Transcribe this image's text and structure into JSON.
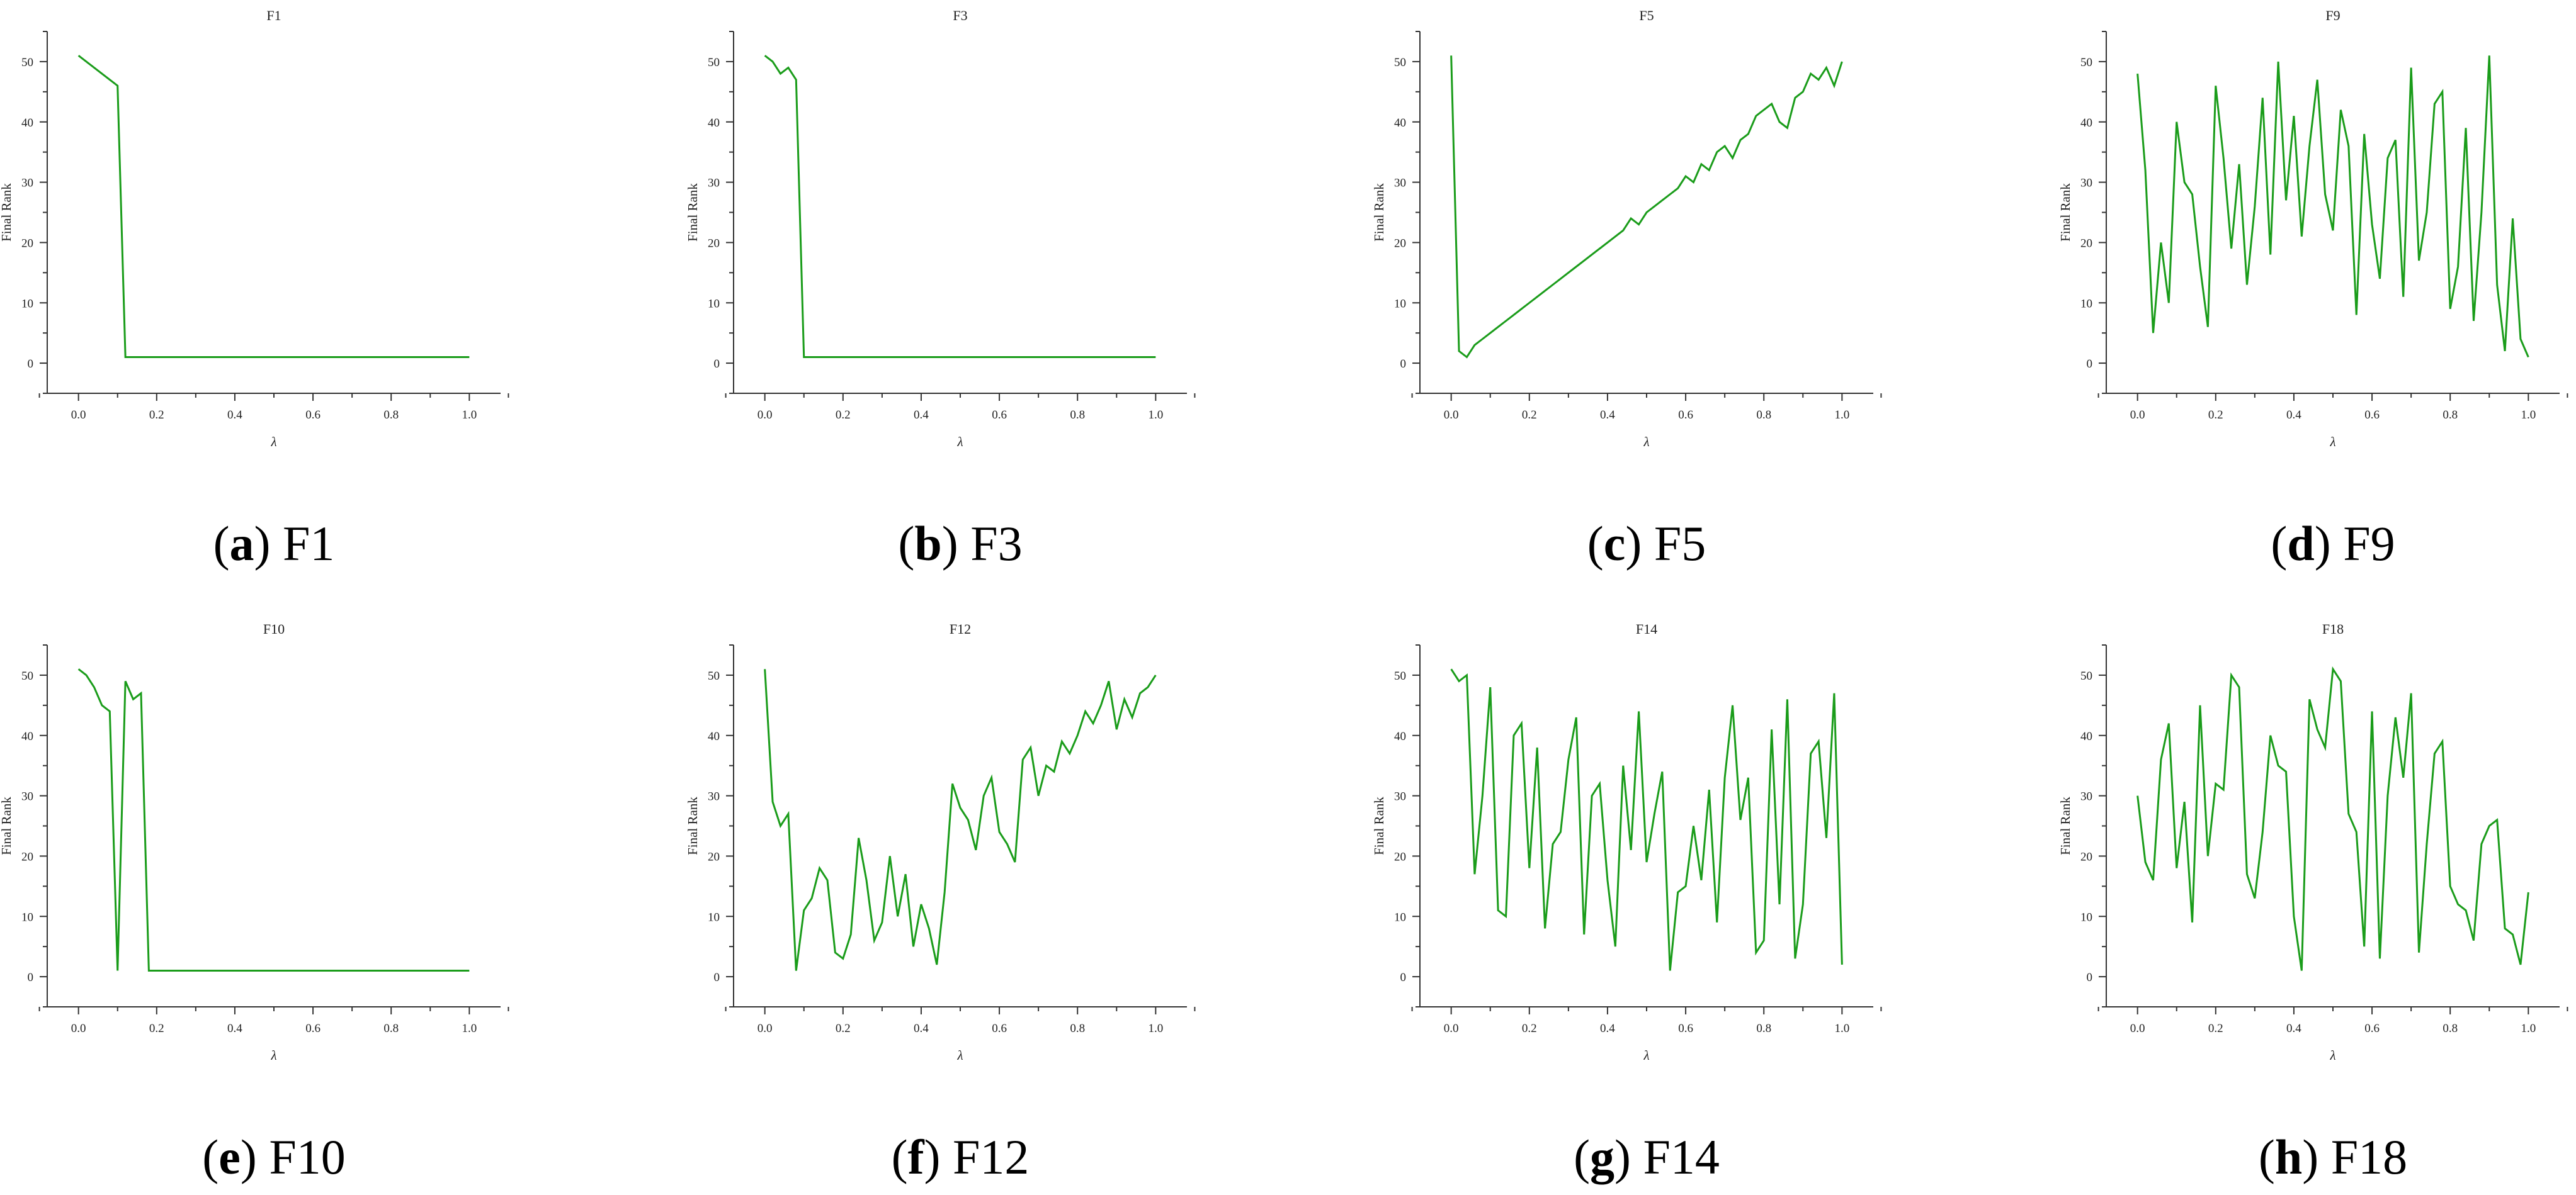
{
  "figure": {
    "line_color": "#1a9c1a",
    "axis_color": "#333333",
    "ylabel": "Final Rank",
    "xlabel": "λ",
    "xlim": [
      -0.08,
      1.08
    ],
    "ylim": [
      -5,
      55
    ],
    "x_ticks": [
      "0.0",
      "0.2",
      "0.4",
      "0.6",
      "0.8",
      "1.0"
    ],
    "y_ticks": [
      "0",
      "10",
      "20",
      "30",
      "40",
      "50"
    ]
  },
  "chart_data": [
    {
      "type": "line",
      "title": "F1",
      "caption_letter": "a",
      "caption_name": "F1",
      "xlabel": "λ",
      "ylabel": "Final Rank",
      "xlim": [
        -0.08,
        1.08
      ],
      "ylim": [
        -5,
        55
      ],
      "series": [
        {
          "x": [
            0.0,
            0.1,
            0.12,
            1.0
          ],
          "values": [
            51,
            46,
            1,
            1
          ]
        }
      ]
    },
    {
      "type": "line",
      "title": "F3",
      "caption_letter": "b",
      "caption_name": "F3",
      "xlabel": "λ",
      "ylabel": "Final Rank",
      "xlim": [
        -0.08,
        1.08
      ],
      "ylim": [
        -5,
        55
      ],
      "series": [
        {
          "x": [
            0.0,
            0.02,
            0.04,
            0.06,
            0.08,
            0.1,
            1.0
          ],
          "values": [
            51,
            50,
            48,
            49,
            47,
            1,
            1
          ]
        }
      ]
    },
    {
      "type": "line",
      "title": "F5",
      "caption_letter": "c",
      "caption_name": "F5",
      "xlabel": "λ",
      "ylabel": "Final Rank",
      "xlim": [
        -0.08,
        1.08
      ],
      "ylim": [
        -5,
        55
      ],
      "series": [
        {
          "x": [
            0.0,
            0.02,
            0.04,
            0.06,
            0.08,
            0.1,
            0.12,
            0.14,
            0.16,
            0.18,
            0.2,
            0.22,
            0.24,
            0.26,
            0.28,
            0.3,
            0.32,
            0.34,
            0.36,
            0.38,
            0.4,
            0.42,
            0.44,
            0.46,
            0.48,
            0.5,
            0.52,
            0.54,
            0.56,
            0.58,
            0.6,
            0.62,
            0.64,
            0.66,
            0.68,
            0.7,
            0.72,
            0.74,
            0.76,
            0.78,
            0.8,
            0.82,
            0.84,
            0.86,
            0.88,
            0.9,
            0.92,
            0.94,
            0.96,
            0.98,
            1.0
          ],
          "values": [
            51,
            2,
            1,
            3,
            4,
            5,
            6,
            7,
            8,
            9,
            10,
            11,
            12,
            13,
            14,
            15,
            16,
            17,
            18,
            19,
            20,
            21,
            22,
            24,
            23,
            25,
            26,
            27,
            28,
            29,
            31,
            30,
            33,
            32,
            35,
            36,
            34,
            37,
            38,
            41,
            42,
            43,
            40,
            39,
            44,
            45,
            48,
            47,
            49,
            46,
            50
          ]
        }
      ]
    },
    {
      "type": "line",
      "title": "F9",
      "caption_letter": "d",
      "caption_name": "F9",
      "xlabel": "λ",
      "ylabel": "Final Rank",
      "xlim": [
        -0.08,
        1.08
      ],
      "ylim": [
        -5,
        55
      ],
      "series": [
        {
          "x": [
            0.0,
            0.02,
            0.04,
            0.06,
            0.08,
            0.1,
            0.12,
            0.14,
            0.16,
            0.18,
            0.2,
            0.22,
            0.24,
            0.26,
            0.28,
            0.3,
            0.32,
            0.34,
            0.36,
            0.38,
            0.4,
            0.42,
            0.44,
            0.46,
            0.48,
            0.5,
            0.52,
            0.54,
            0.56,
            0.58,
            0.6,
            0.62,
            0.64,
            0.66,
            0.68,
            0.7,
            0.72,
            0.74,
            0.76,
            0.78,
            0.8,
            0.82,
            0.84,
            0.86,
            0.88,
            0.9,
            0.92,
            0.94,
            0.96,
            0.98,
            1.0
          ],
          "values": [
            48,
            32,
            5,
            20,
            10,
            40,
            30,
            28,
            16,
            6,
            46,
            34,
            19,
            33,
            13,
            26,
            44,
            18,
            50,
            27,
            41,
            21,
            36,
            47,
            28,
            22,
            42,
            36,
            8,
            38,
            23,
            14,
            34,
            37,
            11,
            49,
            17,
            25,
            43,
            45,
            9,
            16,
            39,
            7,
            25,
            51,
            13,
            2,
            24,
            4,
            1
          ]
        }
      ]
    },
    {
      "type": "line",
      "title": "F10",
      "caption_letter": "e",
      "caption_name": "F10",
      "xlabel": "λ",
      "ylabel": "Final Rank",
      "xlim": [
        -0.08,
        1.08
      ],
      "ylim": [
        -5,
        55
      ],
      "series": [
        {
          "x": [
            0.0,
            0.02,
            0.04,
            0.06,
            0.08,
            0.1,
            0.12,
            0.14,
            0.16,
            0.18,
            1.0
          ],
          "values": [
            51,
            50,
            48,
            45,
            44,
            1,
            49,
            46,
            47,
            1,
            1
          ]
        }
      ]
    },
    {
      "type": "line",
      "title": "F12",
      "caption_letter": "f",
      "caption_name": "F12",
      "xlabel": "λ",
      "ylabel": "Final Rank",
      "xlim": [
        -0.08,
        1.08
      ],
      "ylim": [
        -5,
        55
      ],
      "series": [
        {
          "x": [
            0.0,
            0.02,
            0.04,
            0.06,
            0.08,
            0.1,
            0.12,
            0.14,
            0.16,
            0.18,
            0.2,
            0.22,
            0.24,
            0.26,
            0.28,
            0.3,
            0.32,
            0.34,
            0.36,
            0.38,
            0.4,
            0.42,
            0.44,
            0.46,
            0.48,
            0.5,
            0.52,
            0.54,
            0.56,
            0.58,
            0.6,
            0.62,
            0.64,
            0.66,
            0.68,
            0.7,
            0.72,
            0.74,
            0.76,
            0.78,
            0.8,
            0.82,
            0.84,
            0.86,
            0.88,
            0.9,
            0.92,
            0.94,
            0.96,
            0.98,
            1.0
          ],
          "values": [
            51,
            29,
            25,
            27,
            1,
            11,
            13,
            18,
            16,
            4,
            3,
            7,
            23,
            16,
            6,
            9,
            20,
            10,
            17,
            5,
            12,
            8,
            2,
            14,
            32,
            28,
            26,
            21,
            30,
            33,
            24,
            22,
            19,
            36,
            38,
            30,
            35,
            34,
            39,
            37,
            40,
            44,
            42,
            45,
            49,
            41,
            46,
            43,
            47,
            48,
            50
          ]
        }
      ]
    },
    {
      "type": "line",
      "title": "F14",
      "caption_letter": "g",
      "caption_name": "F14",
      "xlabel": "λ",
      "ylabel": "Final Rank",
      "xlim": [
        -0.08,
        1.08
      ],
      "ylim": [
        -5,
        55
      ],
      "series": [
        {
          "x": [
            0.0,
            0.02,
            0.04,
            0.06,
            0.08,
            0.1,
            0.12,
            0.14,
            0.16,
            0.18,
            0.2,
            0.22,
            0.24,
            0.26,
            0.28,
            0.3,
            0.32,
            0.34,
            0.36,
            0.38,
            0.4,
            0.42,
            0.44,
            0.46,
            0.48,
            0.5,
            0.52,
            0.54,
            0.56,
            0.58,
            0.6,
            0.62,
            0.64,
            0.66,
            0.68,
            0.7,
            0.72,
            0.74,
            0.76,
            0.78,
            0.8,
            0.82,
            0.84,
            0.86,
            0.88,
            0.9,
            0.92,
            0.94,
            0.96,
            0.98,
            1.0
          ],
          "values": [
            51,
            49,
            50,
            17,
            30,
            48,
            11,
            10,
            40,
            42,
            18,
            38,
            8,
            22,
            24,
            36,
            43,
            7,
            30,
            32,
            16,
            5,
            35,
            21,
            44,
            19,
            27,
            34,
            1,
            14,
            15,
            25,
            16,
            31,
            9,
            33,
            45,
            26,
            33,
            4,
            6,
            41,
            12,
            46,
            3,
            12,
            37,
            39,
            23,
            47,
            2
          ]
        }
      ]
    },
    {
      "type": "line",
      "title": "F18",
      "caption_letter": "h",
      "caption_name": "F18",
      "xlabel": "λ",
      "ylabel": "Final Rank",
      "xlim": [
        -0.08,
        1.08
      ],
      "ylim": [
        -5,
        55
      ],
      "series": [
        {
          "x": [
            0.0,
            0.02,
            0.04,
            0.06,
            0.08,
            0.1,
            0.12,
            0.14,
            0.16,
            0.18,
            0.2,
            0.22,
            0.24,
            0.26,
            0.28,
            0.3,
            0.32,
            0.34,
            0.36,
            0.38,
            0.4,
            0.42,
            0.44,
            0.46,
            0.48,
            0.5,
            0.52,
            0.54,
            0.56,
            0.58,
            0.6,
            0.62,
            0.64,
            0.66,
            0.68,
            0.7,
            0.72,
            0.74,
            0.76,
            0.78,
            0.8,
            0.82,
            0.84,
            0.86,
            0.88,
            0.9,
            0.92,
            0.94,
            0.96,
            0.98,
            1.0
          ],
          "values": [
            30,
            19,
            16,
            36,
            42,
            18,
            29,
            9,
            45,
            20,
            32,
            31,
            50,
            48,
            17,
            13,
            24,
            40,
            35,
            34,
            10,
            1,
            46,
            41,
            38,
            51,
            49,
            27,
            24,
            5,
            44,
            3,
            30,
            43,
            33,
            47,
            4,
            22,
            37,
            39,
            15,
            12,
            11,
            6,
            22,
            25,
            26,
            8,
            7,
            2,
            14
          ]
        }
      ]
    }
  ]
}
